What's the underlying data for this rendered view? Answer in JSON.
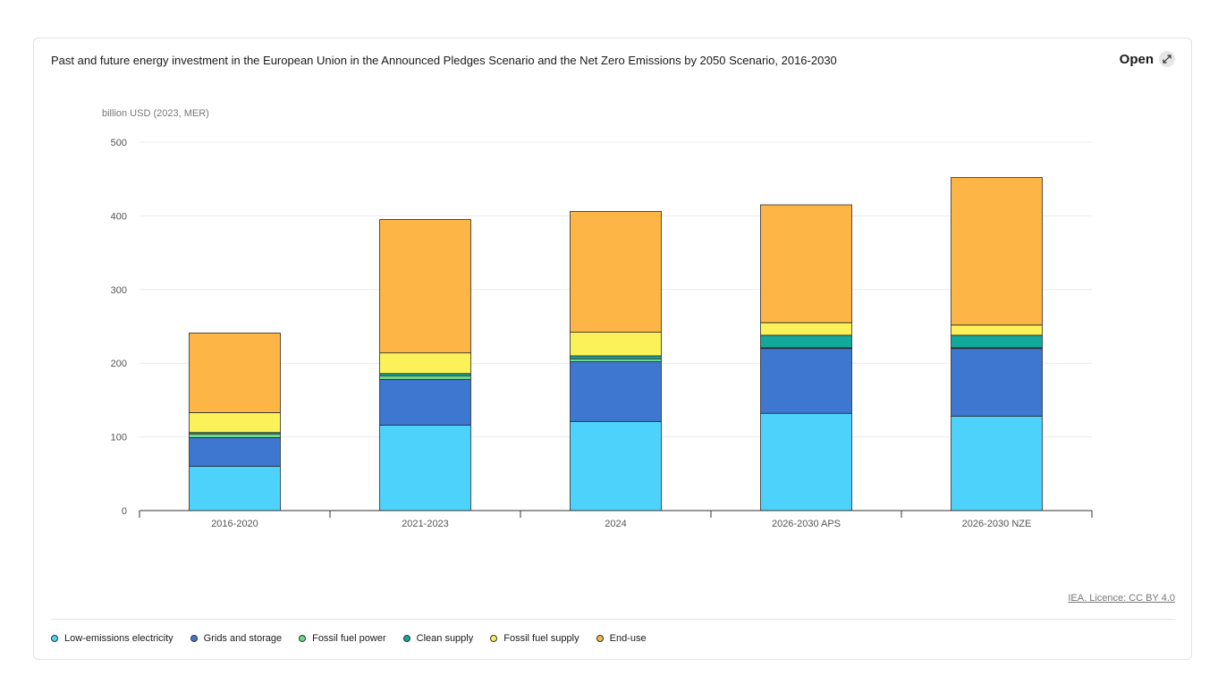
{
  "header": {
    "title": "Past and future energy investment in the European Union in the Announced Pledges Scenario and the Net Zero Emissions by 2050 Scenario, 2016-2030",
    "open_label": "Open",
    "open_icon": "expand-icon"
  },
  "footer": {
    "credit": "IEA. Licence: CC BY 4.0"
  },
  "chart_data": {
    "type": "bar",
    "stacked": true,
    "title": "Past and future energy investment in the European Union in the Announced Pledges Scenario and the Net Zero Emissions by 2050 Scenario, 2016-2030",
    "ylabel": "billion USD (2023, MER)",
    "xlabel": "",
    "ylim": [
      0,
      500
    ],
    "yticks": [
      0,
      100,
      200,
      300,
      400,
      500
    ],
    "grid": true,
    "legend_position": "bottom",
    "categories": [
      "2016-2020",
      "2021-2023",
      "2024",
      "2026-2030 APS",
      "2026-2030 NZE"
    ],
    "series": [
      {
        "name": "Low-emissions electricity",
        "color": "#4dd3fb",
        "values": [
          60,
          116,
          121,
          132,
          128
        ]
      },
      {
        "name": "Grids and storage",
        "color": "#3d77d0",
        "values": [
          39,
          62,
          81,
          88,
          92
        ]
      },
      {
        "name": "Fossil fuel power",
        "color": "#6bdb8a",
        "values": [
          5,
          5,
          4,
          1,
          1
        ]
      },
      {
        "name": "Clean supply",
        "color": "#13a99a",
        "values": [
          2,
          3,
          4,
          17,
          17
        ]
      },
      {
        "name": "Fossil fuel supply",
        "color": "#fbf159",
        "values": [
          27,
          28,
          32,
          17,
          14
        ]
      },
      {
        "name": "End-use",
        "color": "#fdb545",
        "values": [
          108,
          181,
          164,
          160,
          200
        ]
      }
    ]
  }
}
